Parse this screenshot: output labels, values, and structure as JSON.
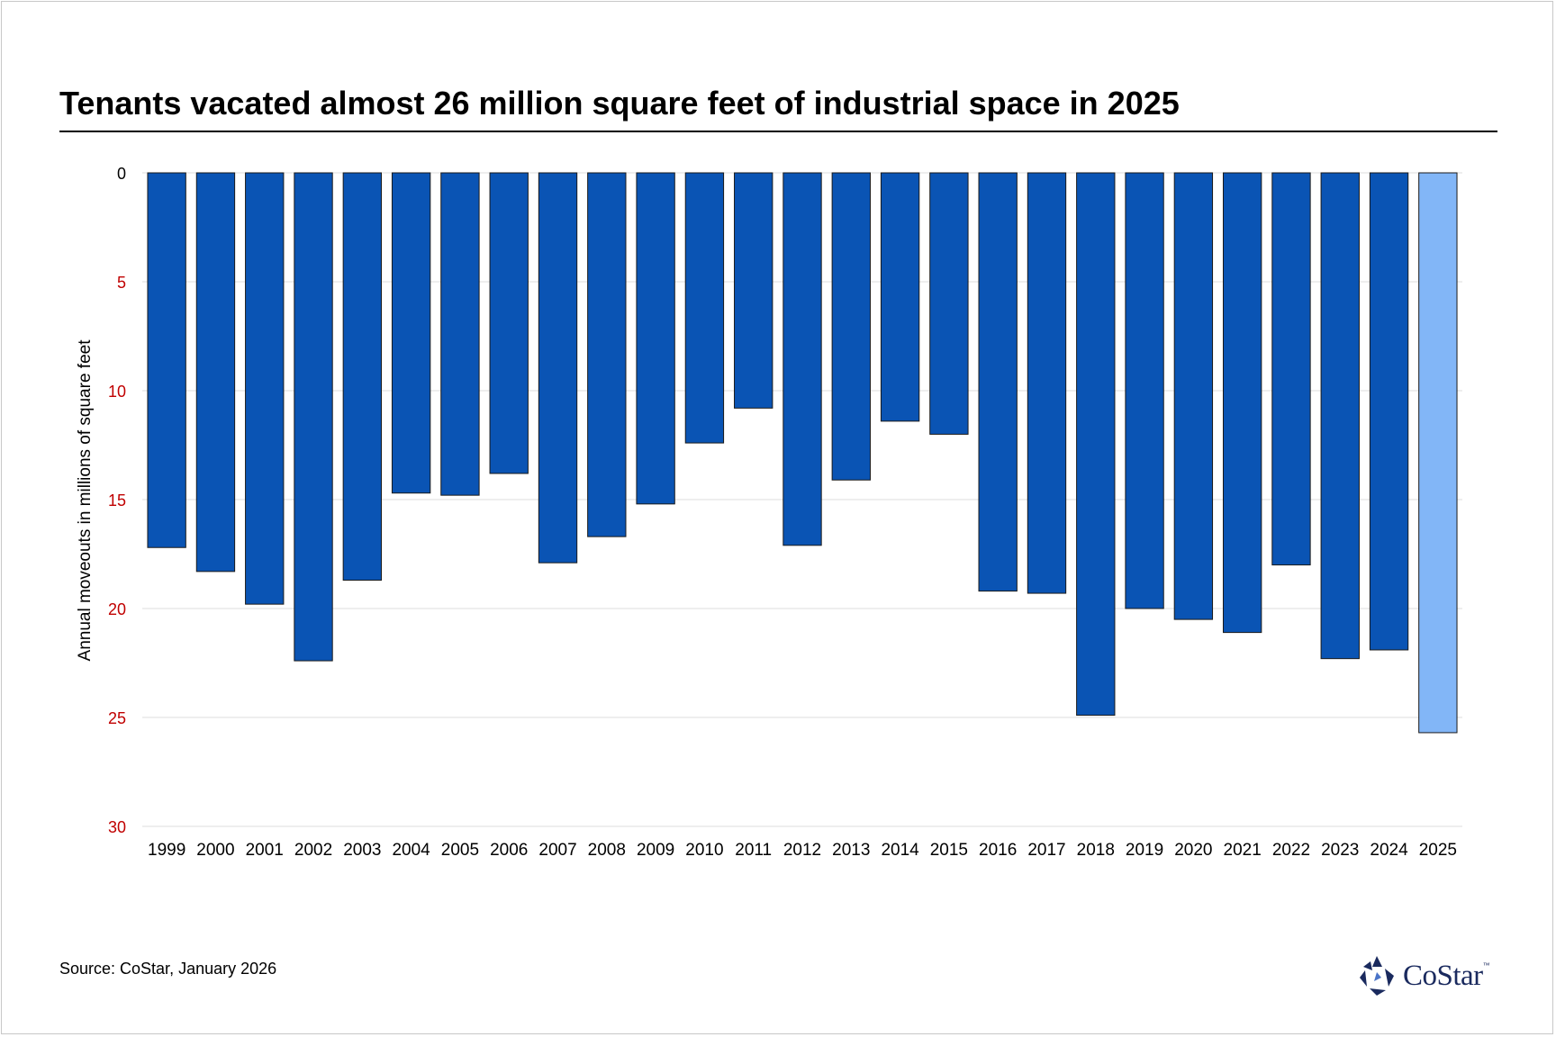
{
  "title": "Tenants vacated almost 26 million square feet of industrial space in 2025",
  "source": "Source: CoStar, January 2026",
  "logo": {
    "text": "CoStar",
    "tm": "™"
  },
  "colors": {
    "bar": "#0a54b4",
    "highlight": "#82b6f7",
    "tick": "#c00000",
    "grid": "#dddddd"
  },
  "chart_data": {
    "type": "bar",
    "orientation": "inverted",
    "title": "Tenants vacated almost 26 million square feet of industrial space in 2025",
    "xlabel": "",
    "ylabel": "Annual moveouts in millions of square feet",
    "ylim": [
      0,
      30
    ],
    "yticks": [
      0,
      5,
      10,
      15,
      20,
      25,
      30
    ],
    "categories": [
      "1999",
      "2000",
      "2001",
      "2002",
      "2003",
      "2004",
      "2005",
      "2006",
      "2007",
      "2008",
      "2009",
      "2010",
      "2011",
      "2012",
      "2013",
      "2014",
      "2015",
      "2016",
      "2017",
      "2018",
      "2019",
      "2020",
      "2021",
      "2022",
      "2023",
      "2024",
      "2025"
    ],
    "values": [
      17.2,
      18.3,
      19.8,
      22.4,
      18.7,
      14.7,
      14.8,
      13.8,
      17.9,
      16.7,
      15.2,
      12.4,
      10.8,
      17.1,
      14.1,
      11.4,
      12.0,
      19.2,
      19.3,
      24.9,
      20.0,
      20.5,
      21.1,
      18.0,
      22.3,
      21.9,
      25.7
    ],
    "highlight_category": "2025",
    "grid": true
  }
}
